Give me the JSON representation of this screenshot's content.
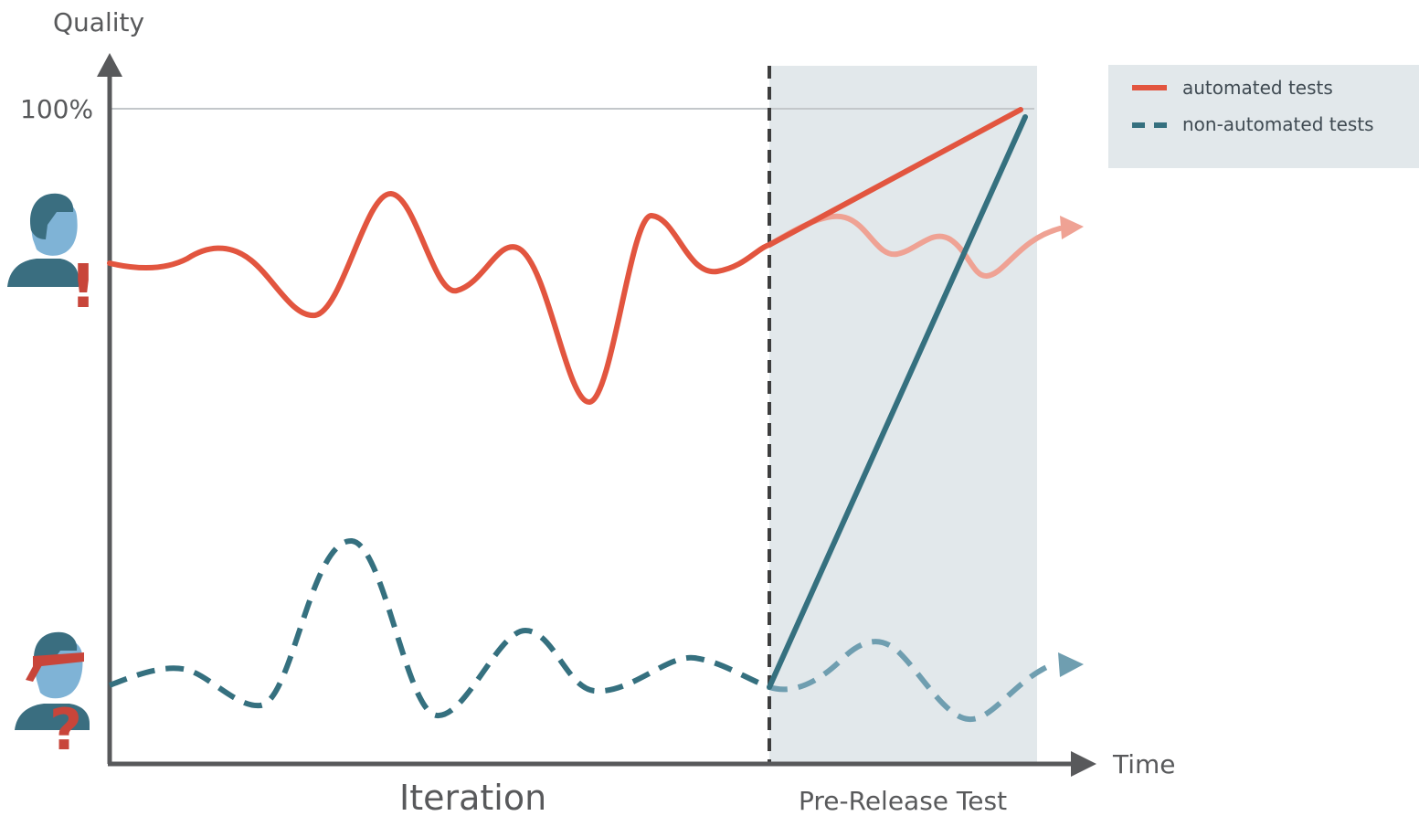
{
  "y_axis": {
    "label": "Quality",
    "tick_label": "100%"
  },
  "x_axis": {
    "label": "Time"
  },
  "phases": {
    "iteration": "Iteration",
    "pre_release": "Pre-Release Test"
  },
  "legend": {
    "automated": "automated tests",
    "non_automated": "non-automated tests"
  },
  "markers": {
    "top_person_symbol": "!",
    "bottom_person_symbol": "?"
  },
  "colors": {
    "automated": "#e2553f",
    "automated_faded": "#efa294",
    "non_automated": "#35707f",
    "non_automated_faded": "#6f9eb0",
    "pre_release_band": "#e2e8eb",
    "axis": "#58595b",
    "person": "#3a6e80",
    "face": "#7fb3d6",
    "alert": "#c8453a"
  }
}
